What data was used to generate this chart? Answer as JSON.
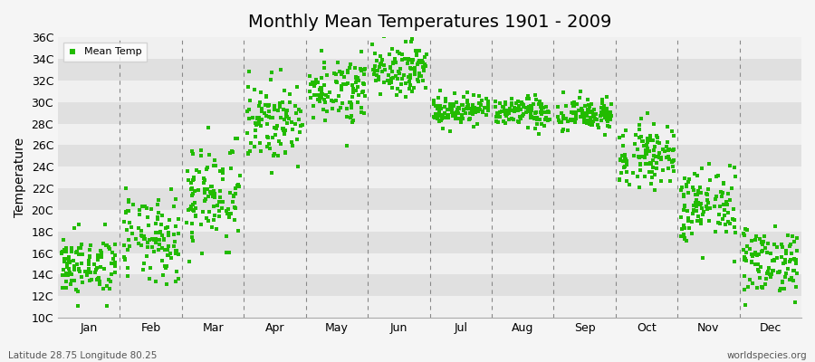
{
  "title": "Monthly Mean Temperatures 1901 - 2009",
  "ylabel": "Temperature",
  "xlabel_left": "Latitude 28.75 Longitude 80.25",
  "xlabel_right": "worldspecies.org",
  "legend_label": "Mean Temp",
  "marker_color": "#22bb00",
  "background_color": "#f5f5f5",
  "plot_bg_color": "#ebebeb",
  "band_color_light": "#f0f0f0",
  "band_color_dark": "#e0e0e0",
  "ylim": [
    10,
    36
  ],
  "ytick_labels": [
    "10C",
    "12C",
    "14C",
    "16C",
    "18C",
    "20C",
    "22C",
    "24C",
    "26C",
    "28C",
    "30C",
    "32C",
    "34C",
    "36C"
  ],
  "ytick_values": [
    10,
    12,
    14,
    16,
    18,
    20,
    22,
    24,
    26,
    28,
    30,
    32,
    34,
    36
  ],
  "months": [
    "Jan",
    "Feb",
    "Mar",
    "Apr",
    "May",
    "Jun",
    "Jul",
    "Aug",
    "Sep",
    "Oct",
    "Nov",
    "Dec"
  ],
  "month_means": [
    14.8,
    17.2,
    21.5,
    28.2,
    31.2,
    33.2,
    29.3,
    29.0,
    28.8,
    25.2,
    20.3,
    15.3
  ],
  "month_stds": [
    1.4,
    2.0,
    2.5,
    1.8,
    1.5,
    1.2,
    0.7,
    0.7,
    0.8,
    1.4,
    1.8,
    1.6
  ],
  "n_years": 109,
  "seed": 42
}
